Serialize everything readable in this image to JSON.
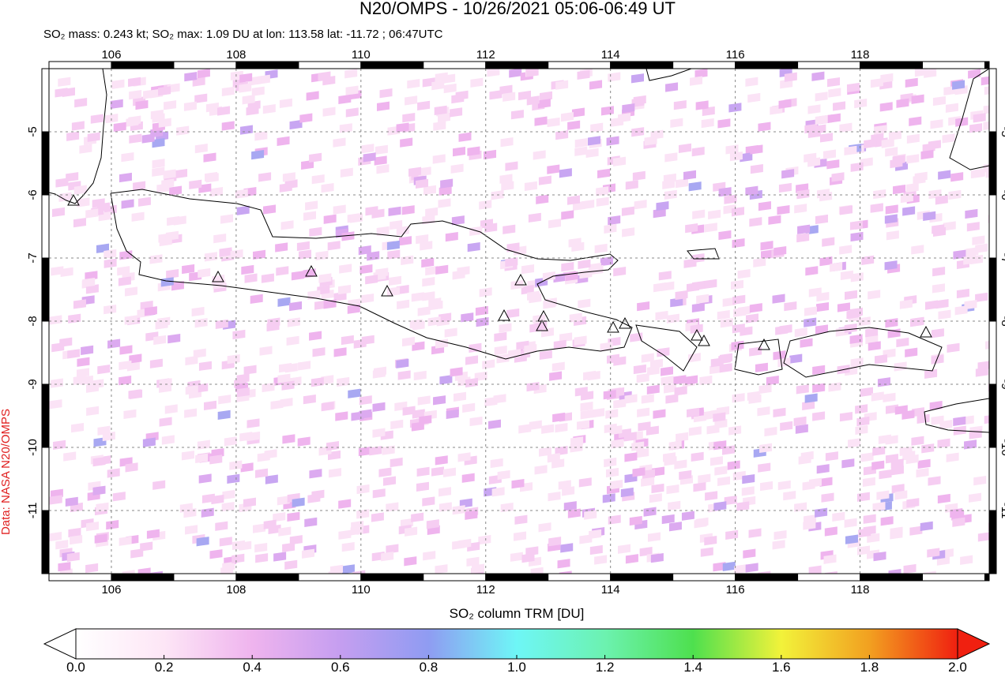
{
  "title": "N20/OMPS - 10/26/2021 05:06-06:49 UT",
  "subtitle": "SO₂ mass: 0.243 kt; SO₂ max: 1.09 DU at lon: 113.58 lat: -11.72 ; 06:47UTC",
  "credit": "Data: NASA N20/OMPS",
  "map": {
    "xlim": [
      105,
      120.07
    ],
    "ylim": [
      -12,
      -4
    ],
    "xticks": [
      106,
      108,
      110,
      112,
      114,
      116,
      118
    ],
    "yticks": [
      -5,
      -6,
      -7,
      -8,
      -9,
      -10,
      -11
    ]
  },
  "colorbar": {
    "label": "SO₂ column TRM [DU]",
    "lim": [
      0,
      2
    ],
    "ticks": [
      {
        "value": 0,
        "label": "0.0"
      },
      {
        "value": 0.2,
        "label": "0.2"
      },
      {
        "value": 0.4,
        "label": "0.4"
      },
      {
        "value": 0.6,
        "label": "0.6"
      },
      {
        "value": 0.8,
        "label": "0.8"
      },
      {
        "value": 1,
        "label": "1.0"
      },
      {
        "value": 1.2,
        "label": "1.2"
      },
      {
        "value": 1.4,
        "label": "1.4"
      },
      {
        "value": 1.6,
        "label": "1.6"
      },
      {
        "value": 1.8,
        "label": "1.8"
      },
      {
        "value": 2,
        "label": "2.0"
      }
    ]
  }
}
